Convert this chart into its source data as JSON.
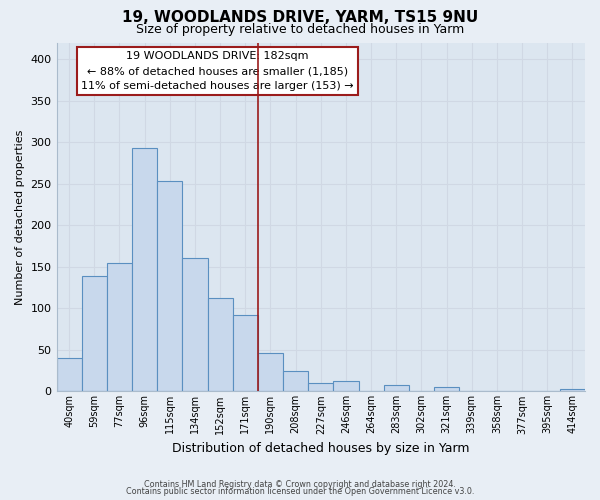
{
  "title": "19, WOODLANDS DRIVE, YARM, TS15 9NU",
  "subtitle": "Size of property relative to detached houses in Yarm",
  "xlabel": "Distribution of detached houses by size in Yarm",
  "ylabel": "Number of detached properties",
  "bar_labels": [
    "40sqm",
    "59sqm",
    "77sqm",
    "96sqm",
    "115sqm",
    "134sqm",
    "152sqm",
    "171sqm",
    "190sqm",
    "208sqm",
    "227sqm",
    "246sqm",
    "264sqm",
    "283sqm",
    "302sqm",
    "321sqm",
    "339sqm",
    "358sqm",
    "377sqm",
    "395sqm",
    "414sqm"
  ],
  "bar_values": [
    40,
    139,
    155,
    293,
    253,
    161,
    113,
    92,
    46,
    25,
    10,
    13,
    0,
    8,
    0,
    5,
    0,
    0,
    0,
    0,
    3
  ],
  "bar_color": "#c8d8ec",
  "bar_edge_color": "#5a8fc0",
  "ylim": [
    0,
    420
  ],
  "yticks": [
    0,
    50,
    100,
    150,
    200,
    250,
    300,
    350,
    400
  ],
  "property_line_x": 7.5,
  "property_line_color": "#9b1c1c",
  "annotation_title": "19 WOODLANDS DRIVE: 182sqm",
  "annotation_line1": "← 88% of detached houses are smaller (1,185)",
  "annotation_line2": "11% of semi-detached houses are larger (153) →",
  "annotation_box_color": "#ffffff",
  "annotation_box_edge": "#9b1c1c",
  "footer1": "Contains HM Land Registry data © Crown copyright and database right 2024.",
  "footer2": "Contains public sector information licensed under the Open Government Licence v3.0.",
  "background_color": "#e8eef5",
  "grid_color": "#d0d8e4",
  "plot_bg_color": "#dce6f0"
}
